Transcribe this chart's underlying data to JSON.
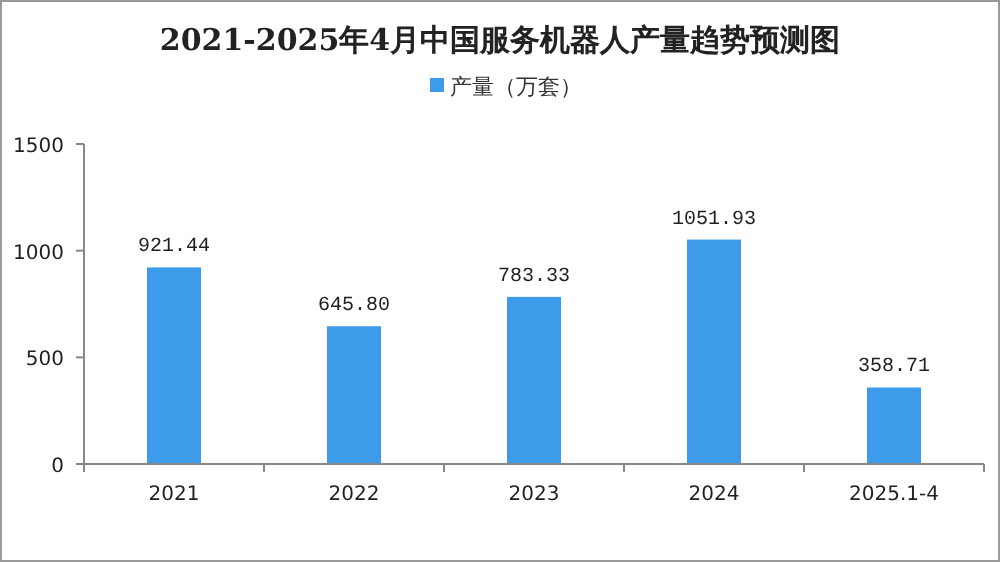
{
  "chart_data": {
    "type": "bar",
    "title": "2021-2025年4月中国服务机器人产量趋势预测图",
    "categories": [
      "2021",
      "2022",
      "2023",
      "2024",
      "2025.1-4"
    ],
    "series": [
      {
        "name": "产量（万套）",
        "color": "#3d9be9",
        "values": [
          921.44,
          645.8,
          783.33,
          1051.93,
          358.71
        ],
        "value_labels": [
          "921.44",
          "645.80",
          "783.33",
          "1051.93",
          "358.71"
        ]
      }
    ],
    "ylim": [
      0,
      1500
    ],
    "yticks": [
      0,
      500,
      1000,
      1500
    ],
    "legend": "top",
    "grid": false
  }
}
